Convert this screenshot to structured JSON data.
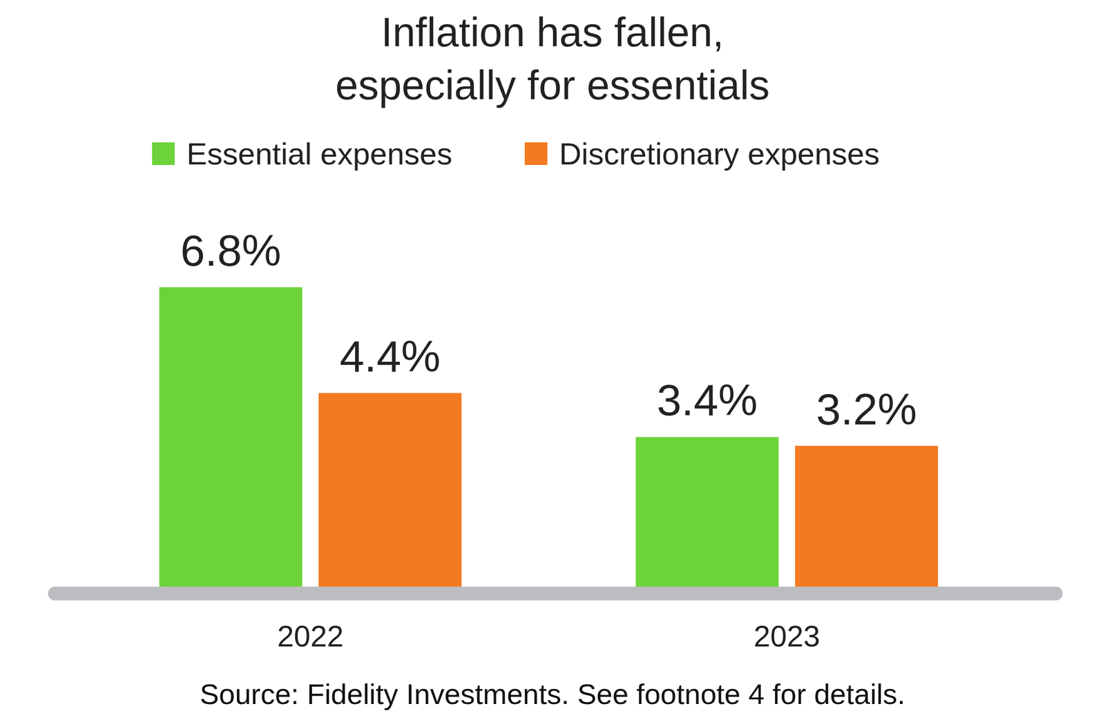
{
  "chart_data": {
    "type": "bar",
    "title": "Inflation has fallen, especially for essentials",
    "categories": [
      "2022",
      "2023"
    ],
    "series": [
      {
        "name": "Essential expenses",
        "color": "#6cd43a",
        "values": [
          6.8,
          3.4
        ],
        "value_labels": [
          "6.8%",
          "3.4%"
        ]
      },
      {
        "name": "Discretionary expenses",
        "color": "#f47a22",
        "values": [
          4.4,
          3.2
        ],
        "value_labels": [
          "4.4%",
          "3.2%"
        ]
      }
    ],
    "ylim": [
      0,
      8
    ],
    "data_labels": true,
    "tick_labels": "x",
    "legend": "top",
    "grid": false,
    "source": "Source: Fidelity Investments. See footnote 4 for details."
  }
}
